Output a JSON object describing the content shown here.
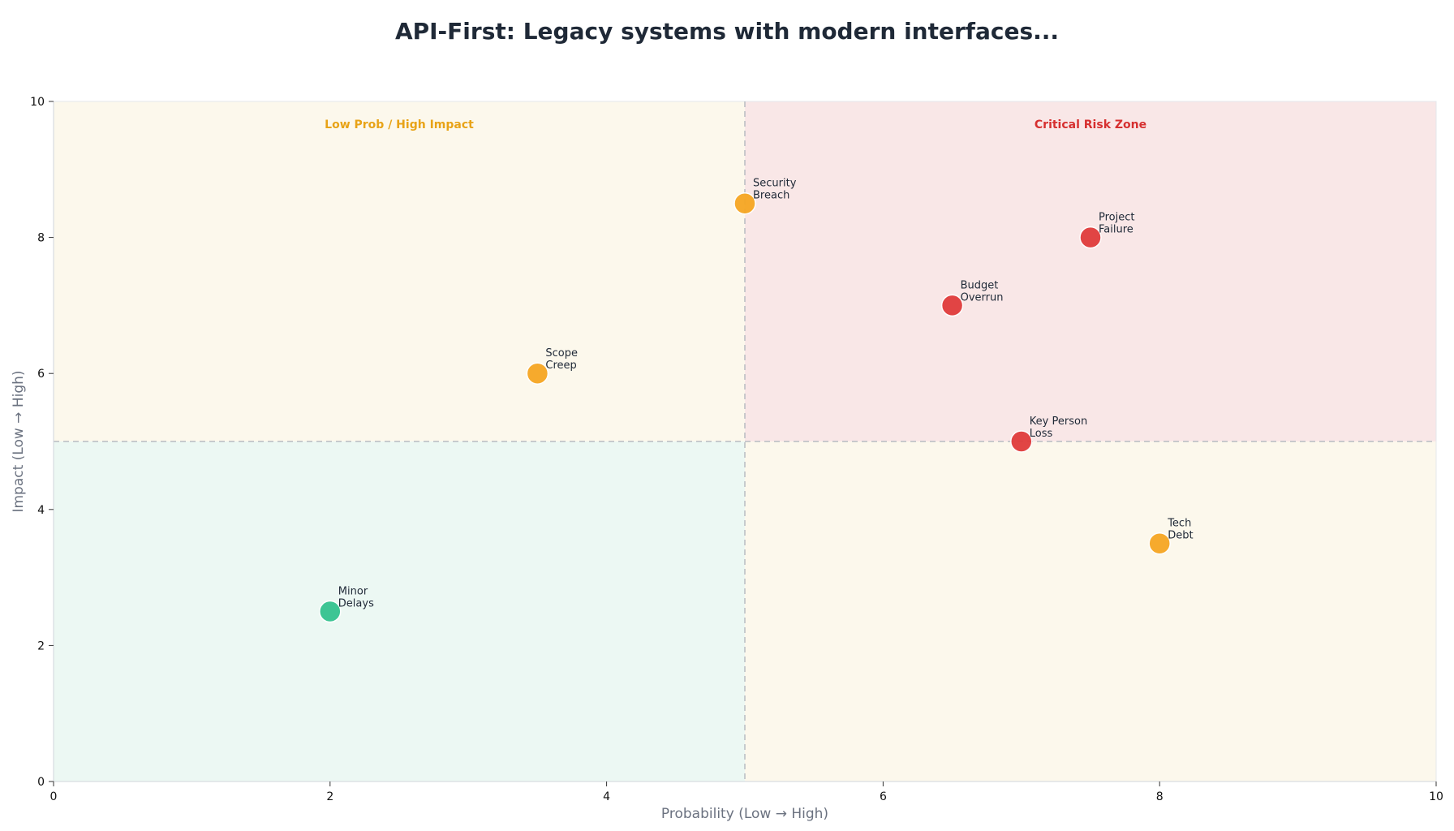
{
  "chart_data": {
    "type": "scatter",
    "title": "API-First: Legacy systems with modern interfaces...",
    "xlabel": "Probability (Low → High)",
    "ylabel": "Impact (Low → High)",
    "xlim": [
      0,
      10
    ],
    "ylim": [
      0,
      10
    ],
    "xticks": [
      "0",
      "2",
      "4",
      "6",
      "8",
      "10"
    ],
    "yticks": [
      "0",
      "2",
      "4",
      "6",
      "8",
      "10"
    ],
    "grid": false,
    "divider": {
      "x": 5,
      "y": 5
    },
    "zones": [
      {
        "name": "top-left",
        "label": "Low Prob / High Impact",
        "label_color": "#e8a317",
        "fill": "#fcf8ec"
      },
      {
        "name": "top-right",
        "label": "Critical Risk Zone",
        "label_color": "#d62f2f",
        "fill": "#f9e7e7"
      },
      {
        "name": "bottom-left",
        "label": "",
        "label_color": "",
        "fill": "#ecf8f3"
      },
      {
        "name": "bottom-right",
        "label": "",
        "label_color": "",
        "fill": "#fcf8ec"
      }
    ],
    "points": [
      {
        "label": [
          "Security",
          "Breach"
        ],
        "x": 5,
        "y": 8.5,
        "color": "#f6a623"
      },
      {
        "label": [
          "Project",
          "Failure"
        ],
        "x": 7.5,
        "y": 8,
        "color": "#e03c3c"
      },
      {
        "label": [
          "Budget",
          "Overrun"
        ],
        "x": 6.5,
        "y": 7,
        "color": "#e03c3c"
      },
      {
        "label": [
          "Scope",
          "Creep"
        ],
        "x": 3.5,
        "y": 6,
        "color": "#f6a623"
      },
      {
        "label": [
          "Key Person",
          "Loss"
        ],
        "x": 7,
        "y": 5,
        "color": "#e03c3c"
      },
      {
        "label": [
          "Tech",
          "Debt"
        ],
        "x": 8,
        "y": 3.5,
        "color": "#f6a623"
      },
      {
        "label": [
          "Minor",
          "Delays"
        ],
        "x": 2,
        "y": 2.5,
        "color": "#34c38f"
      }
    ]
  }
}
